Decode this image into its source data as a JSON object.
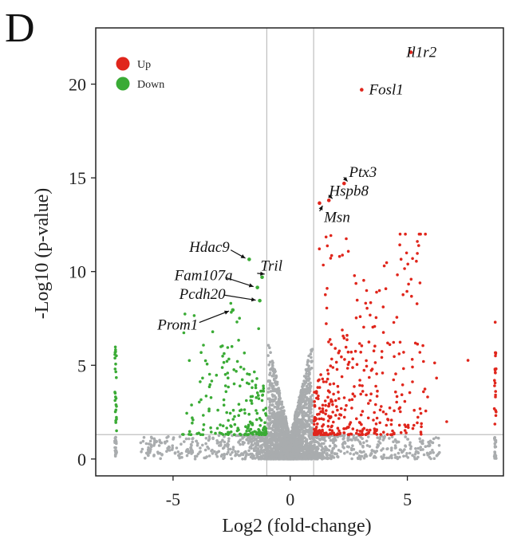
{
  "panel_label": "D",
  "colors": {
    "up": "#e0261c",
    "down": "#3aab35",
    "ns": "#a9acae",
    "threshold": "#bfbfbf",
    "frame": "#222222"
  },
  "chart_data": {
    "type": "scatter",
    "title": "",
    "xlabel": "Log2 (fold-change)",
    "ylabel": "-Log10 (p-value)",
    "xlim": [
      -8.3,
      9.1
    ],
    "ylim": [
      -0.9,
      23.0
    ],
    "x_ticks": [
      -5,
      0,
      5
    ],
    "y_ticks": [
      0,
      5,
      10,
      15,
      20
    ],
    "grid": false,
    "thresholds": {
      "fc_lines": [
        -1,
        1
      ],
      "p_line": 1.3
    },
    "legend": {
      "position": "top-left",
      "entries": [
        {
          "name": "Up",
          "color": "#e0261c"
        },
        {
          "name": "Down",
          "color": "#3aab35"
        }
      ]
    },
    "labeled_points": [
      {
        "gene": "Il1r2",
        "x": 5.15,
        "y": 21.7,
        "group": "up",
        "label_x": 5.6,
        "label_y": 21.7,
        "arrow": false
      },
      {
        "gene": "Fosl1",
        "x": 3.05,
        "y": 19.7,
        "group": "up",
        "label_x": 4.1,
        "label_y": 19.7,
        "arrow": false
      },
      {
        "gene": "Ptx3",
        "x": 2.3,
        "y": 14.7,
        "group": "up",
        "label_x": 3.1,
        "label_y": 15.3,
        "arrow": true
      },
      {
        "gene": "Hspb8",
        "x": 1.65,
        "y": 13.8,
        "group": "up",
        "label_x": 2.5,
        "label_y": 14.3,
        "arrow": true
      },
      {
        "gene": "Msn",
        "x": 1.25,
        "y": 13.65,
        "group": "up",
        "label_x": 2.0,
        "label_y": 12.9,
        "arrow": true
      },
      {
        "gene": "Hdac9",
        "x": -1.75,
        "y": 10.65,
        "group": "down",
        "label_x": -3.45,
        "label_y": 11.3,
        "arrow": true
      },
      {
        "gene": "Tril",
        "x": -1.2,
        "y": 9.7,
        "group": "down",
        "label_x": -0.8,
        "label_y": 10.3,
        "arrow": true
      },
      {
        "gene": "Fam107a",
        "x": -1.4,
        "y": 9.15,
        "group": "down",
        "label_x": -3.7,
        "label_y": 9.8,
        "arrow": true
      },
      {
        "gene": "Pcdh20",
        "x": -1.3,
        "y": 8.45,
        "group": "down",
        "label_x": -3.75,
        "label_y": 8.8,
        "arrow": true
      },
      {
        "gene": "Prom1",
        "x": -2.45,
        "y": 7.95,
        "group": "down",
        "label_x": -4.8,
        "label_y": 7.15,
        "arrow": true
      }
    ]
  }
}
